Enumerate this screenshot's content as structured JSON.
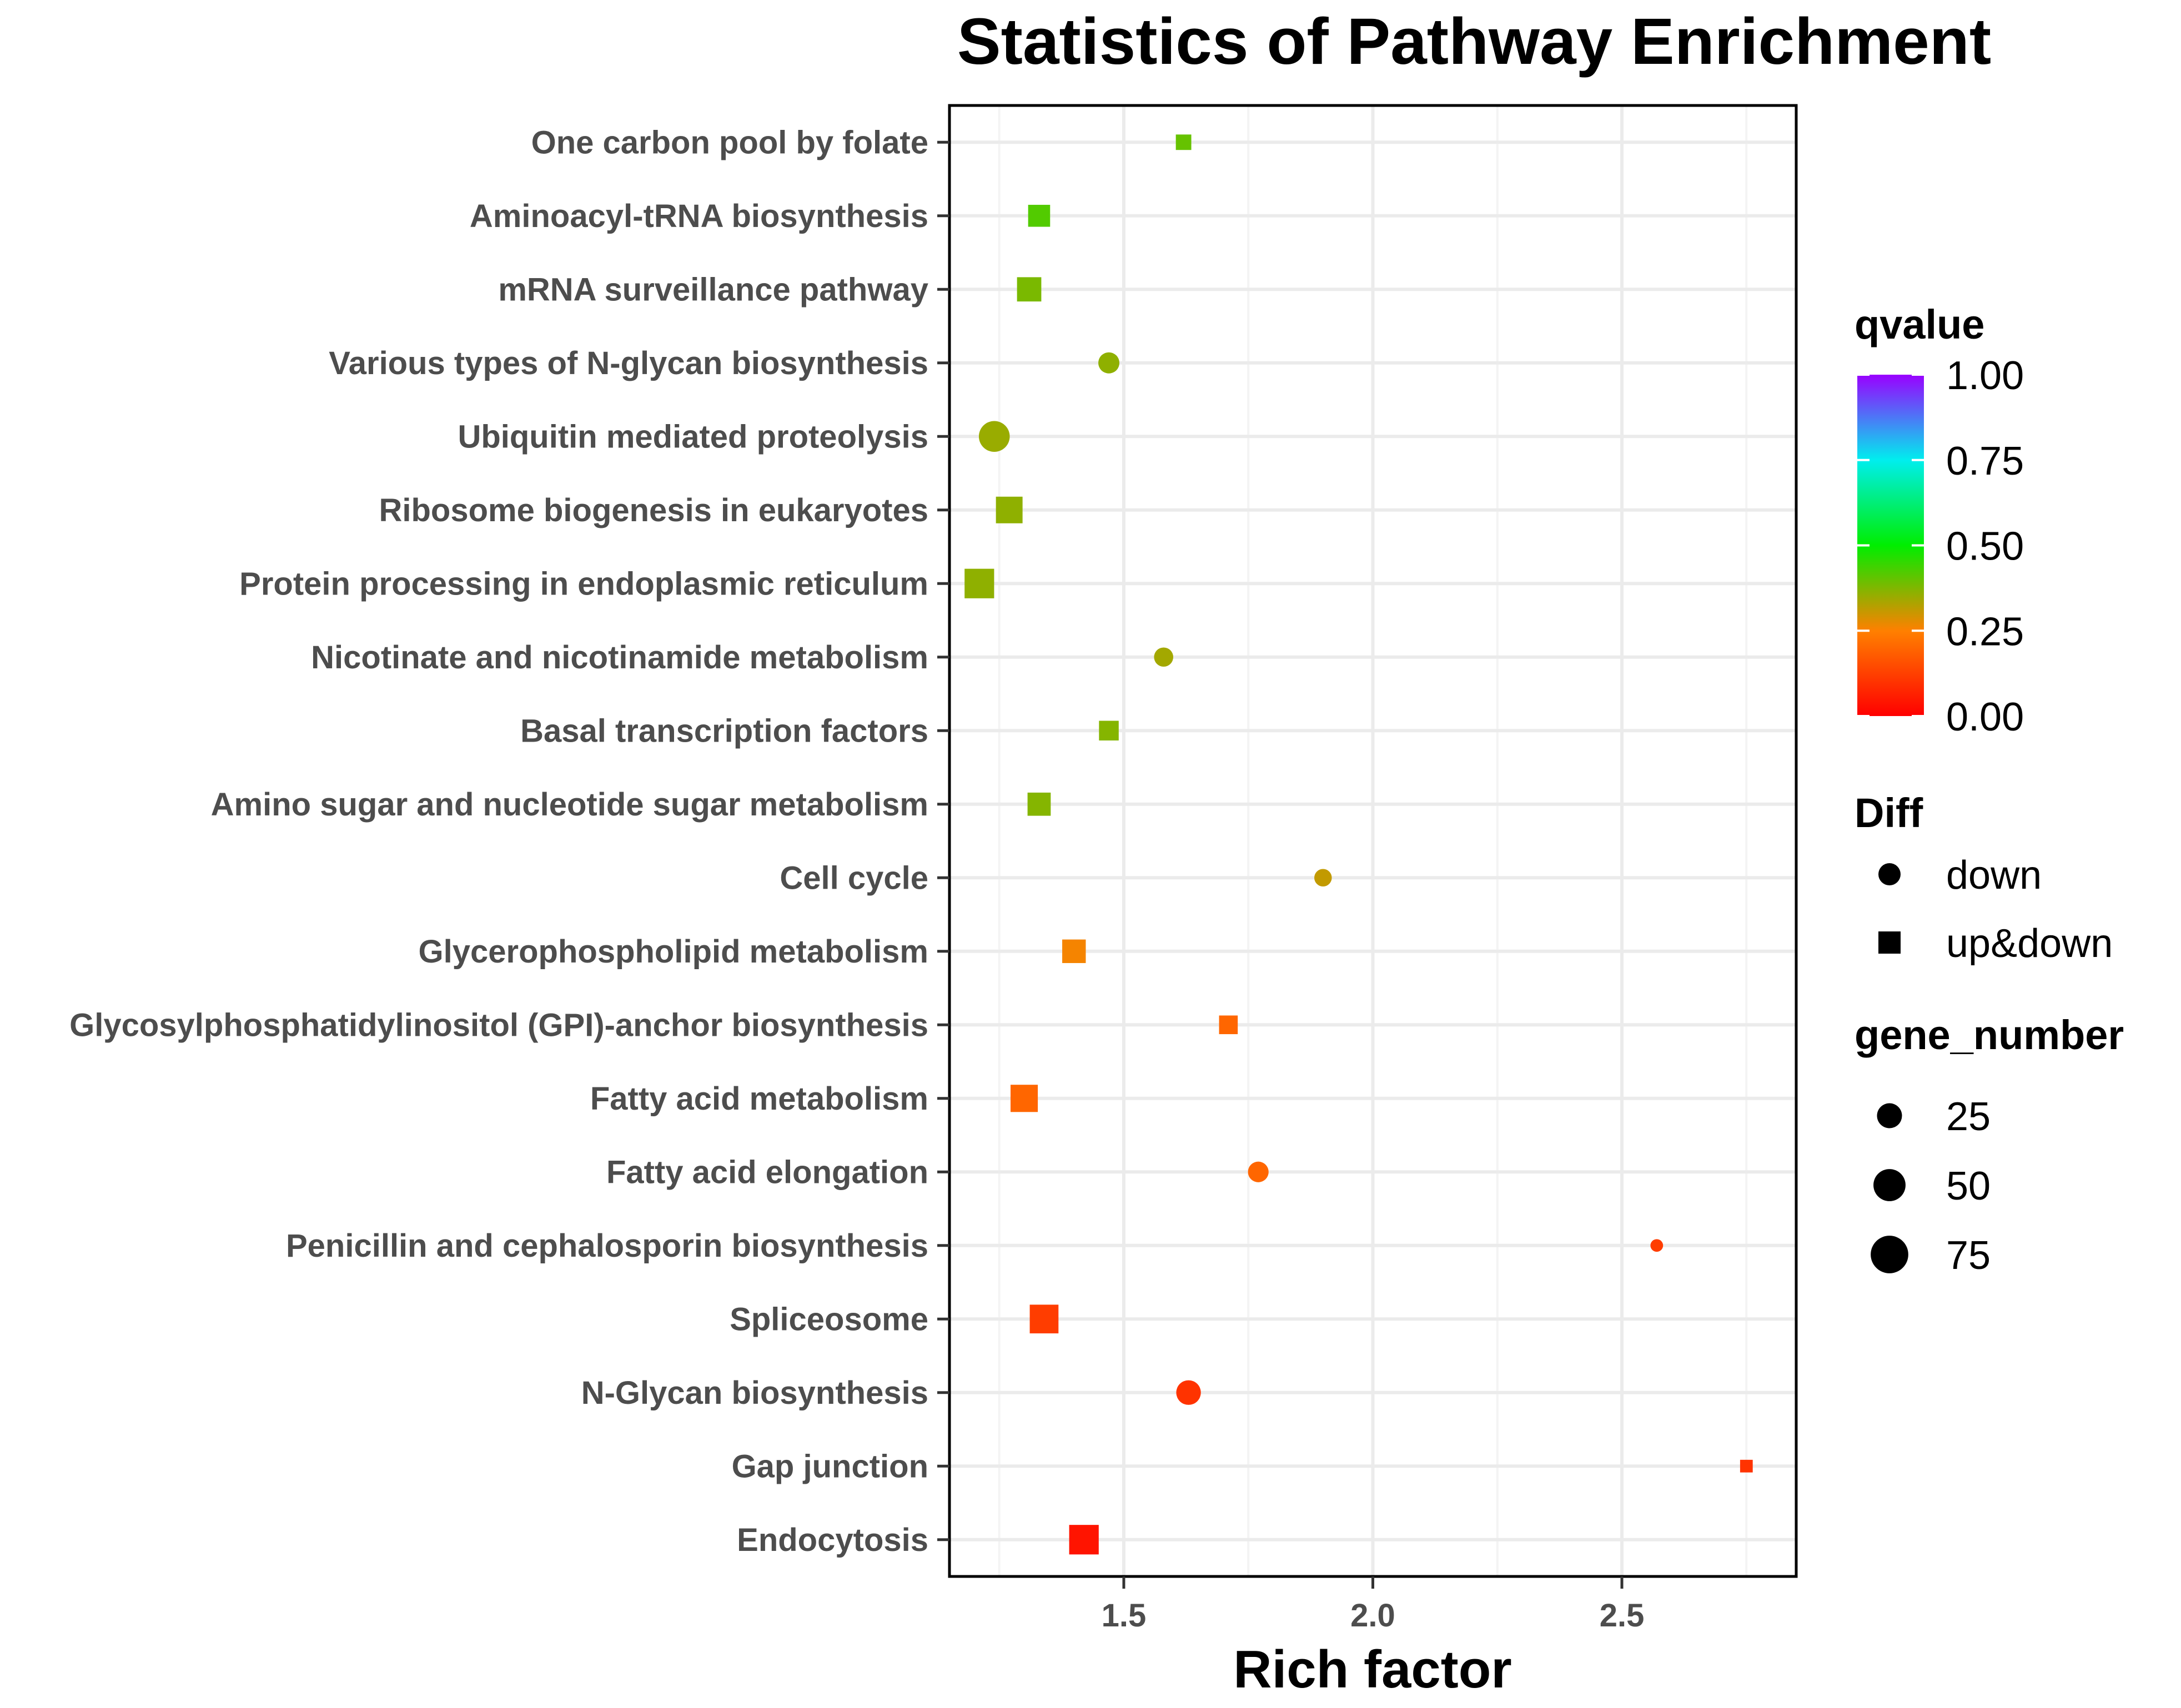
{
  "chart_data": {
    "type": "scatter",
    "title": "Statistics of Pathway Enrichment",
    "xlabel": "Rich factor",
    "ylabel": "",
    "xlim": [
      1.15,
      2.85
    ],
    "xticks": [
      1.5,
      2.0,
      2.5
    ],
    "xtick_labels": [
      "1.5",
      "2.0",
      "2.5"
    ],
    "grid": true,
    "points": [
      {
        "pathway": "One carbon pool by folate",
        "rich_factor": 1.62,
        "qvalue": 0.4,
        "gene_number": 5,
        "diff": "up&down"
      },
      {
        "pathway": "Aminoacyl-tRNA biosynthesis",
        "rich_factor": 1.33,
        "qvalue": 0.42,
        "gene_number": 17,
        "diff": "up&down"
      },
      {
        "pathway": "mRNA surveillance pathway",
        "rich_factor": 1.31,
        "qvalue": 0.38,
        "gene_number": 23,
        "diff": "up&down"
      },
      {
        "pathway": "Various types of N-glycan biosynthesis",
        "rich_factor": 1.47,
        "qvalue": 0.36,
        "gene_number": 15,
        "diff": "down"
      },
      {
        "pathway": "Ubiquitin mediated proteolysis",
        "rich_factor": 1.24,
        "qvalue": 0.35,
        "gene_number": 45,
        "diff": "down"
      },
      {
        "pathway": "Ribosome biogenesis in eukaryotes",
        "rich_factor": 1.27,
        "qvalue": 0.36,
        "gene_number": 30,
        "diff": "up&down"
      },
      {
        "pathway": "Protein processing in endoplasmic reticulum",
        "rich_factor": 1.21,
        "qvalue": 0.36,
        "gene_number": 40,
        "diff": "up&down"
      },
      {
        "pathway": "Nicotinate and nicotinamide metabolism",
        "rich_factor": 1.58,
        "qvalue": 0.34,
        "gene_number": 11,
        "diff": "down"
      },
      {
        "pathway": "Basal transcription factors",
        "rich_factor": 1.47,
        "qvalue": 0.37,
        "gene_number": 12,
        "diff": "up&down"
      },
      {
        "pathway": "Amino sugar and nucleotide sugar metabolism",
        "rich_factor": 1.33,
        "qvalue": 0.37,
        "gene_number": 20,
        "diff": "up&down"
      },
      {
        "pathway": "Cell cycle",
        "rich_factor": 1.9,
        "qvalue": 0.31,
        "gene_number": 8,
        "diff": "down"
      },
      {
        "pathway": "Glycerophospholipid metabolism",
        "rich_factor": 1.4,
        "qvalue": 0.26,
        "gene_number": 21,
        "diff": "up&down"
      },
      {
        "pathway": "Glycosylphosphatidylinositol (GPI)-anchor biosynthesis",
        "rich_factor": 1.71,
        "qvalue": 0.2,
        "gene_number": 10,
        "diff": "up&down"
      },
      {
        "pathway": "Fatty acid metabolism",
        "rich_factor": 1.3,
        "qvalue": 0.2,
        "gene_number": 32,
        "diff": "up&down"
      },
      {
        "pathway": "Fatty acid elongation",
        "rich_factor": 1.77,
        "qvalue": 0.2,
        "gene_number": 14,
        "diff": "down"
      },
      {
        "pathway": "Penicillin and cephalosporin biosynthesis",
        "rich_factor": 2.57,
        "qvalue": 0.12,
        "gene_number": 2,
        "diff": "down"
      },
      {
        "pathway": "Spliceosome",
        "rich_factor": 1.34,
        "qvalue": 0.12,
        "gene_number": 37,
        "diff": "up&down"
      },
      {
        "pathway": "N-Glycan biosynthesis",
        "rich_factor": 1.63,
        "qvalue": 0.1,
        "gene_number": 24,
        "diff": "down"
      },
      {
        "pathway": "Gap junction",
        "rich_factor": 2.75,
        "qvalue": 0.1,
        "gene_number": 2,
        "diff": "up&down"
      },
      {
        "pathway": "Endocytosis",
        "rich_factor": 1.42,
        "qvalue": 0.04,
        "gene_number": 40,
        "diff": "up&down"
      }
    ],
    "legend": {
      "color": {
        "title": "qvalue",
        "labels": [
          "1.00",
          "0.75",
          "0.50",
          "0.25",
          "0.00"
        ],
        "values": [
          1.0,
          0.75,
          0.5,
          0.25,
          0.0
        ],
        "gradient_stops": [
          "#ff0000",
          "#ff8000",
          "#00ee00",
          "#00eeee",
          "#9a00ff"
        ]
      },
      "shape": {
        "title": "Diff",
        "items": [
          {
            "label": "down",
            "shape": "circle"
          },
          {
            "label": "up&down",
            "shape": "square"
          }
        ]
      },
      "size": {
        "title": "gene_number",
        "items": [
          {
            "label": "25",
            "value": 25
          },
          {
            "label": "50",
            "value": 50
          },
          {
            "label": "75",
            "value": 75
          }
        ]
      }
    }
  }
}
